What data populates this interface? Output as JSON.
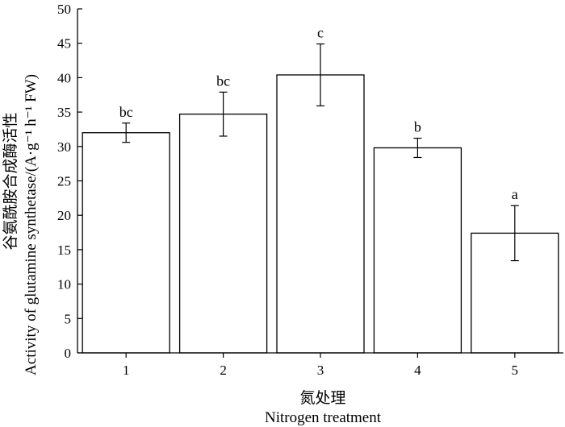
{
  "chart_data": {
    "type": "bar",
    "categories": [
      "1",
      "2",
      "3",
      "4",
      "5"
    ],
    "values": [
      32.0,
      34.7,
      40.4,
      29.8,
      17.4
    ],
    "error": [
      1.4,
      3.2,
      4.5,
      1.4,
      4.0
    ],
    "significance": [
      "bc",
      "bc",
      "c",
      "b",
      "a"
    ],
    "xlabel_zh": "氮处理",
    "xlabel_en": "Nitrogen treatment",
    "ylabel_zh": "谷氨酰胺合成酶活性",
    "ylabel_en": "Activity of glutamine synthetase/(A·g⁻¹ h⁻¹ FW)",
    "ylim": [
      0,
      50
    ],
    "yticks": [
      0,
      5,
      10,
      15,
      20,
      25,
      30,
      35,
      40,
      45,
      50
    ],
    "grid": false,
    "colors": {
      "bar_fill": "#ffffff",
      "stroke": "#000000"
    }
  }
}
